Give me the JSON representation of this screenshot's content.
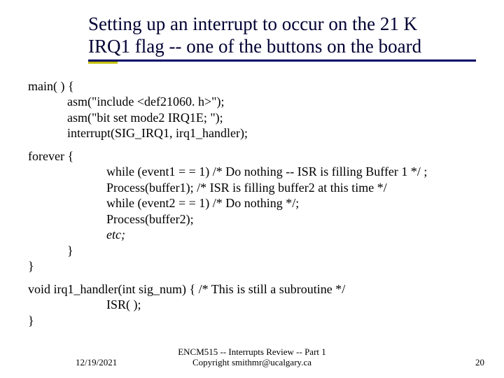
{
  "title": {
    "line1": "Setting up an interrupt to occur on the 21 K",
    "line2": "IRQ1 flag -- one of the buttons on the board"
  },
  "code": {
    "main_open": "main( ) {",
    "asm1": "asm(\"include <def21060. h>\");",
    "asm2": "asm(\"bit set mode2 IRQ1E; \");",
    "interrupt": "interrupt(SIG_IRQ1, irq1_handler);",
    "forever_open": "forever {",
    "while1": "while (event1 = = 1) /* Do nothing -- ISR is filling Buffer 1 */ ;",
    "proc1": "Process(buffer1);     /* ISR is filling buffer2 at this time */",
    "while2": "while (event2 = = 1) /* Do nothing */;",
    "proc2": "Process(buffer2);",
    "etc": "etc;",
    "brace1": "}",
    "brace2": "}",
    "handler_open": "void irq1_handler(int sig_num) {  /* This is still a subroutine */",
    "isr": "ISR( );",
    "brace3": "}"
  },
  "footer": {
    "date": "12/19/2021",
    "center1": "ENCM515 -- Interrupts Review -- Part 1",
    "center2": "Copyright smithmr@ucalgary.ca",
    "page": "20"
  }
}
